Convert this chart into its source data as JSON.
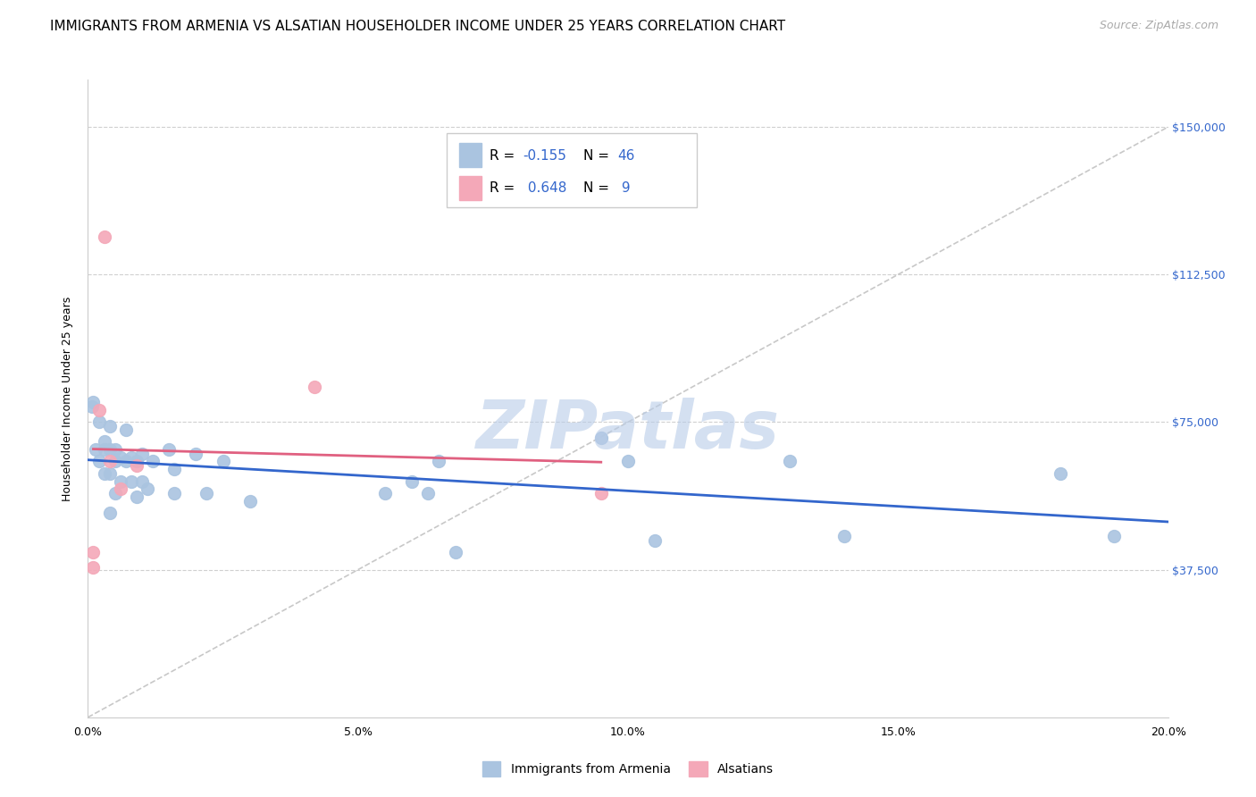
{
  "title": "IMMIGRANTS FROM ARMENIA VS ALSATIAN HOUSEHOLDER INCOME UNDER 25 YEARS CORRELATION CHART",
  "source": "Source: ZipAtlas.com",
  "xlabel_ticks": [
    "0.0%",
    "5.0%",
    "10.0%",
    "15.0%",
    "20.0%"
  ],
  "xlabel_tick_vals": [
    0.0,
    0.05,
    0.1,
    0.15,
    0.2
  ],
  "ylabel": "Householder Income Under 25 years",
  "ylabel_ticks": [
    "$150,000",
    "$112,500",
    "$75,000",
    "$37,500"
  ],
  "ylabel_tick_vals": [
    150000,
    112500,
    75000,
    37500
  ],
  "xlim": [
    0.0,
    0.2
  ],
  "ylim": [
    0,
    162000
  ],
  "armenia_x": [
    0.0008,
    0.001,
    0.0015,
    0.002,
    0.002,
    0.003,
    0.003,
    0.003,
    0.004,
    0.004,
    0.004,
    0.005,
    0.005,
    0.005,
    0.006,
    0.006,
    0.007,
    0.007,
    0.008,
    0.008,
    0.009,
    0.009,
    0.01,
    0.01,
    0.011,
    0.012,
    0.015,
    0.016,
    0.016,
    0.02,
    0.022,
    0.025,
    0.03,
    0.055,
    0.06,
    0.063,
    0.065,
    0.068,
    0.095,
    0.1,
    0.105,
    0.13,
    0.14,
    0.18,
    0.19,
    0.004
  ],
  "armenia_y": [
    79000,
    80000,
    68000,
    75000,
    65000,
    70000,
    68000,
    62000,
    74000,
    68000,
    62000,
    68000,
    65000,
    57000,
    66000,
    60000,
    73000,
    65000,
    66000,
    60000,
    65000,
    56000,
    67000,
    60000,
    58000,
    65000,
    68000,
    63000,
    57000,
    67000,
    57000,
    65000,
    55000,
    57000,
    60000,
    57000,
    65000,
    42000,
    71000,
    65000,
    45000,
    65000,
    46000,
    62000,
    46000,
    52000
  ],
  "alsatian_x": [
    0.001,
    0.001,
    0.002,
    0.003,
    0.004,
    0.006,
    0.009,
    0.042,
    0.095
  ],
  "alsatian_y": [
    42000,
    38000,
    78000,
    122000,
    65000,
    58000,
    64000,
    84000,
    57000
  ],
  "armenia_color": "#aac4e0",
  "alsatian_color": "#f4a8b8",
  "armenia_line_color": "#3366cc",
  "alsatian_line_color": "#e06080",
  "diagonal_line_color": "#c8c8c8",
  "watermark_text": "ZIPatlas",
  "watermark_color": "#b8cce8",
  "marker_size": 100,
  "title_fontsize": 11,
  "axis_label_fontsize": 9,
  "tick_fontsize": 9,
  "legend_fontsize": 11,
  "source_fontsize": 9
}
